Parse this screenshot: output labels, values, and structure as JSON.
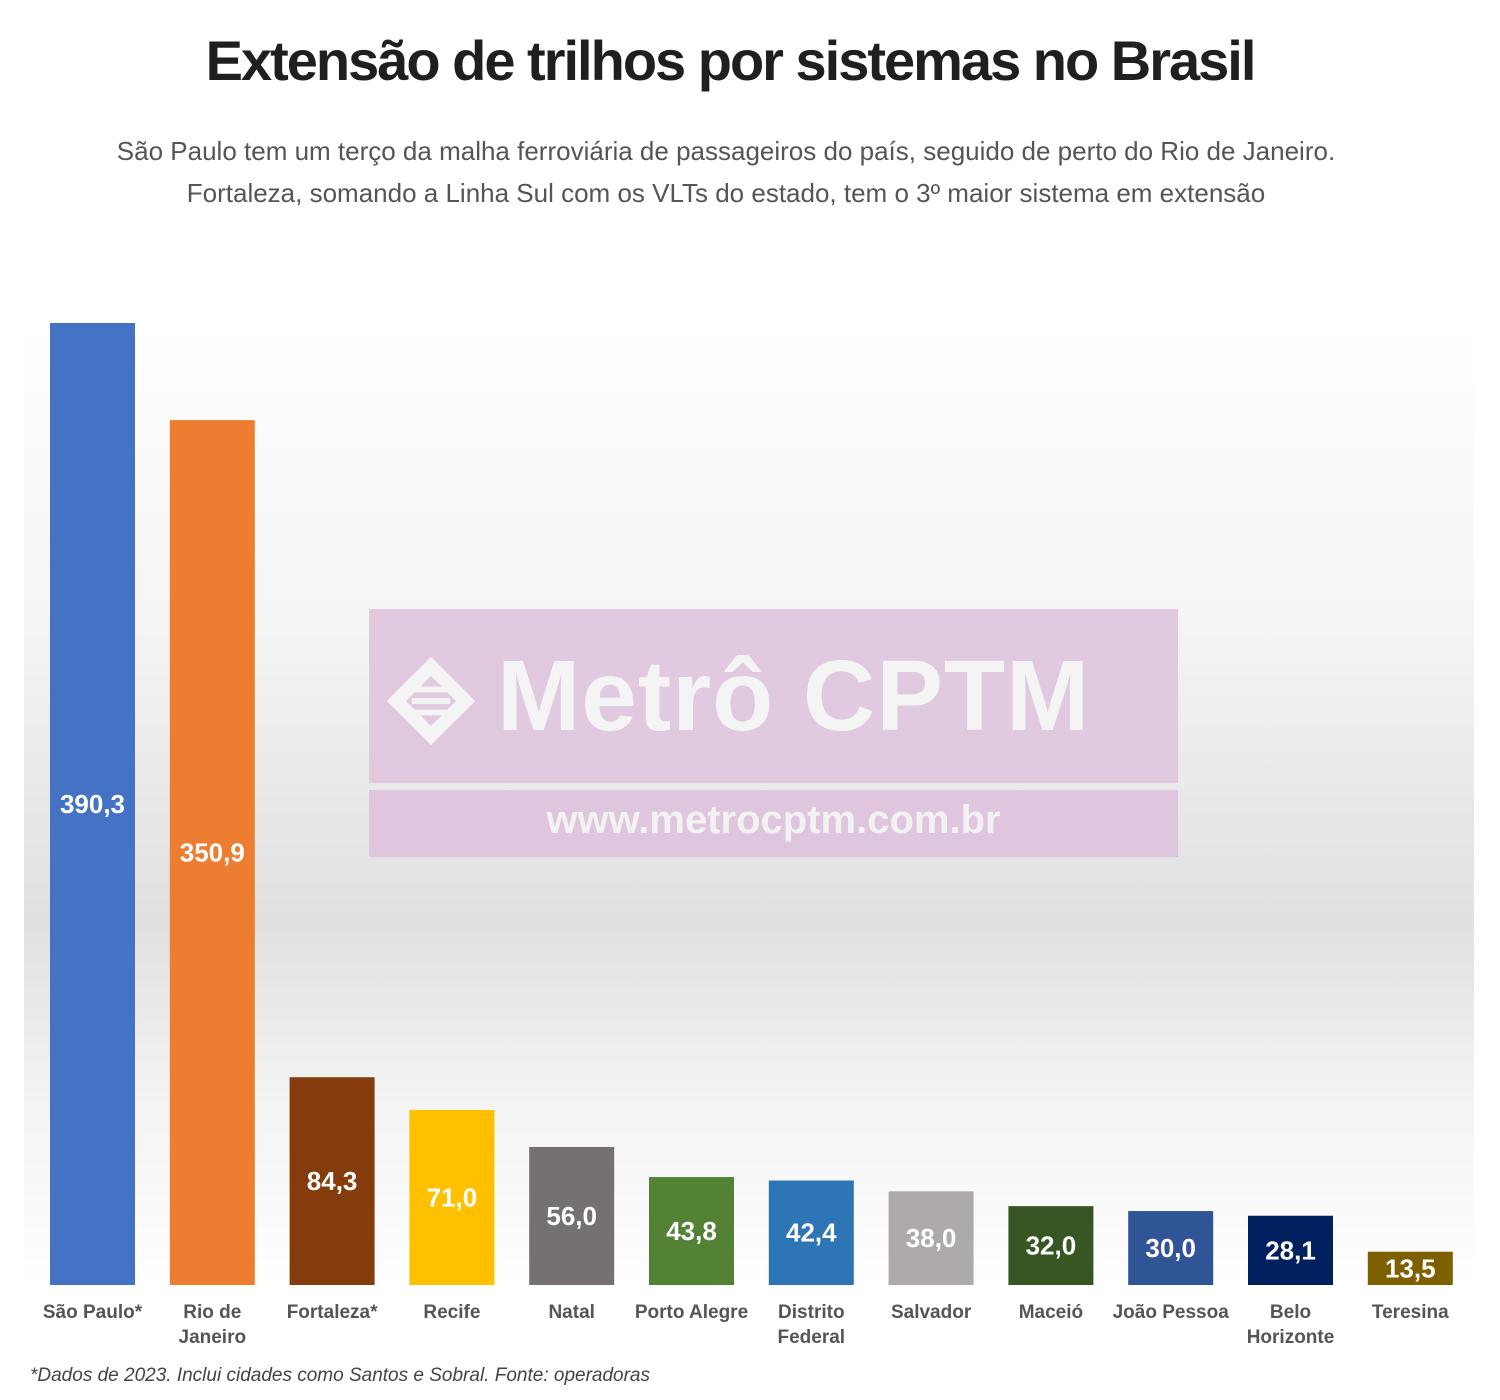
{
  "header": {
    "title": "Extensão de trilhos por sistemas no Brasil",
    "subtitle_line1": "São Paulo tem um terço da malha ferroviária de passageiros do país, seguido de perto do Rio de Janeiro.",
    "subtitle_line2": "Fortaleza, somando a Linha Sul com os VLTs do estado, tem o 3º maior sistema em extensão"
  },
  "watermark": {
    "brand": "Metrô CPTM",
    "url": "www.metrocptm.com.br"
  },
  "footnote": "*Dados de 2023. Inclui cidades como Santos e Sobral. Fonte: operadoras",
  "chart_data": {
    "type": "bar",
    "title": "Extensão de trilhos por sistemas no Brasil",
    "xlabel": "",
    "ylabel": "",
    "grid": false,
    "legend": "none",
    "ylim": [
      0,
      390.3
    ],
    "categories": [
      [
        "São Paulo*"
      ],
      [
        "Rio de",
        "Janeiro"
      ],
      [
        "Fortaleza*"
      ],
      [
        "Recife"
      ],
      [
        "Natal"
      ],
      [
        "Porto Alegre"
      ],
      [
        "Distrito",
        "Federal"
      ],
      [
        "Salvador"
      ],
      [
        "Maceió"
      ],
      [
        "João Pessoa"
      ],
      [
        "Belo",
        "Horizonte"
      ],
      [
        "Teresina"
      ]
    ],
    "values": [
      390.3,
      350.9,
      84.3,
      71.0,
      56.0,
      43.8,
      42.4,
      38.0,
      32.0,
      30.0,
      28.1,
      13.5
    ],
    "value_labels": [
      "390,3",
      "350,9",
      "84,3",
      "71,0",
      "56,0",
      "43,8",
      "42,4",
      "38,0",
      "32,0",
      "30,0",
      "28,1",
      "13,5"
    ],
    "colors": [
      "#4472c4",
      "#ed7d31",
      "#843c0c",
      "#ffc000",
      "#767171",
      "#548235",
      "#2e75b6",
      "#aeaaaa",
      "#375623",
      "#2f5597",
      "#002060",
      "#7f6000"
    ]
  }
}
